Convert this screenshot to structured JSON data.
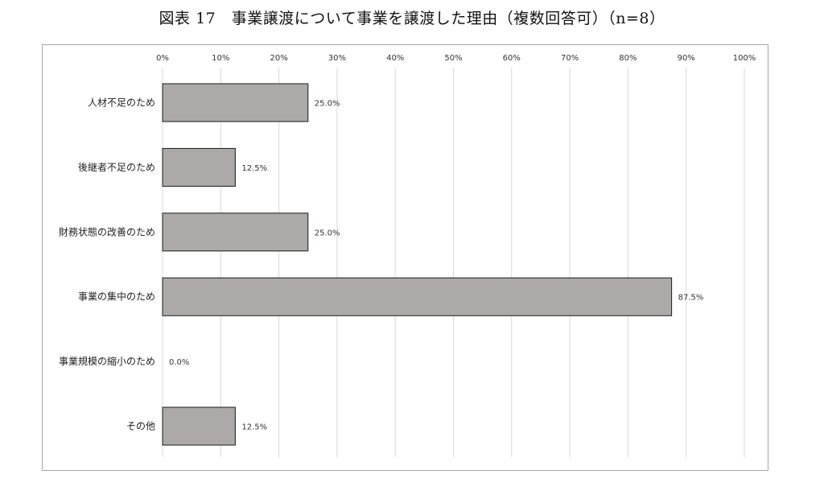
{
  "figure": {
    "title": "図表 17　事業譲渡について事業を譲渡した理由（複数回答可）（n=8）"
  },
  "chart_data": {
    "type": "bar",
    "orientation": "horizontal",
    "title": "",
    "xlabel": "",
    "ylabel": "",
    "xlim": [
      0,
      100
    ],
    "x_ticks": [
      "0%",
      "10%",
      "20%",
      "30%",
      "40%",
      "50%",
      "60%",
      "70%",
      "80%",
      "90%",
      "100%"
    ],
    "categories": [
      "人材不足のため",
      "後継者不足のため",
      "財務状態の改善のため",
      "事業の集中のため",
      "事業規模の縮小のため",
      "その他"
    ],
    "values": [
      25.0,
      12.5,
      25.0,
      87.5,
      0.0,
      12.5
    ],
    "data_labels": [
      "25.0%",
      "12.5%",
      "25.0%",
      "87.5%",
      "0.0%",
      "12.5%"
    ],
    "grid": true,
    "legend": "none",
    "colors": {
      "bar_fill": "#ada9a8",
      "bar_stroke": "#1a1a1a",
      "grid": "#d9d9d9"
    }
  }
}
